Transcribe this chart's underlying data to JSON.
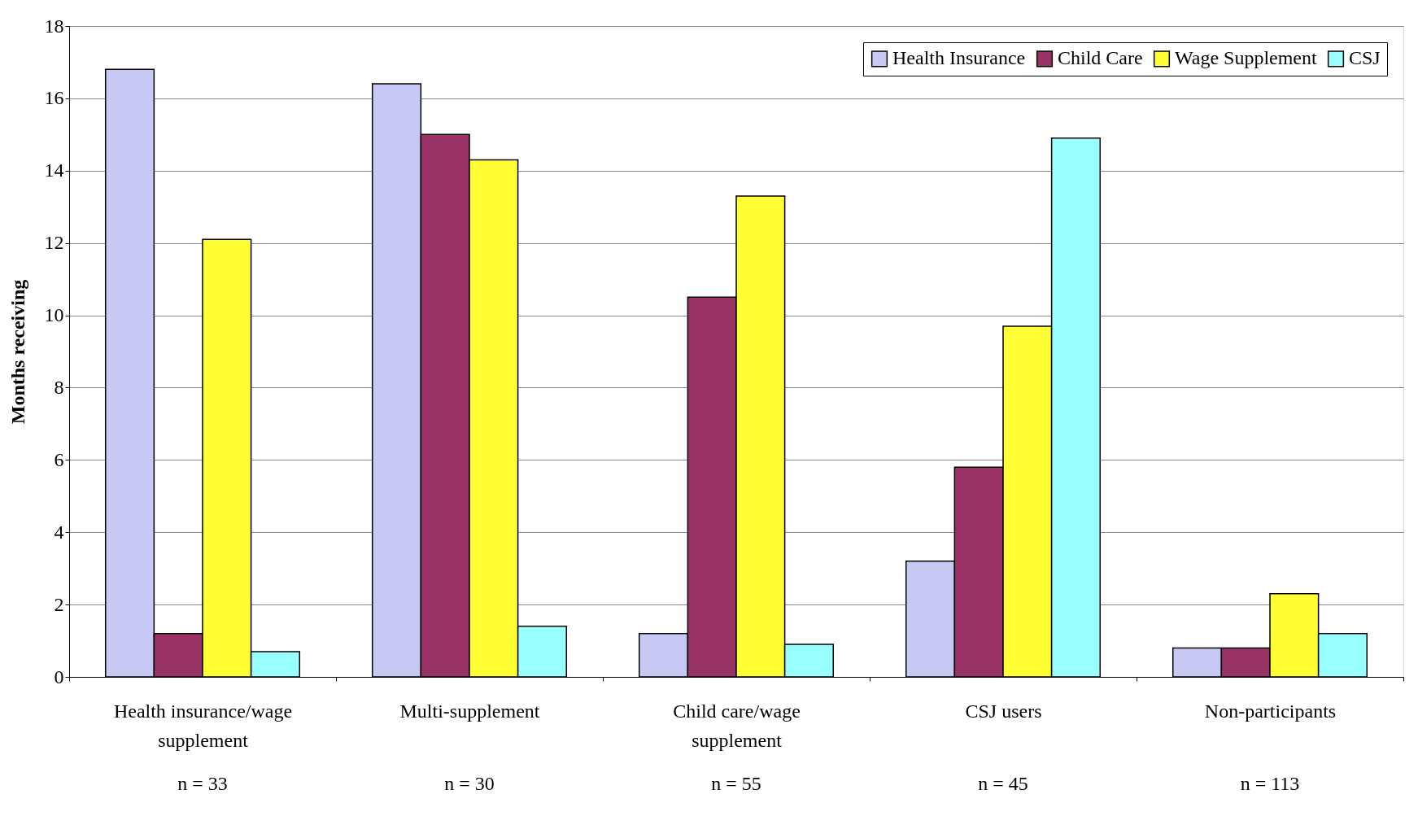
{
  "chart_data": {
    "type": "bar",
    "ylabel": "Months receiving",
    "categories": [
      "Health insurance/wage supplement",
      "Multi-supplement",
      "Child care/wage supplement",
      "CSJ users",
      "Non-participants"
    ],
    "series": [
      {
        "name": "Health Insurance",
        "color": "#c8c8f4",
        "values": [
          16.8,
          16.4,
          1.2,
          3.2,
          0.8
        ]
      },
      {
        "name": "Child Care",
        "color": "#993366",
        "values": [
          1.2,
          15.0,
          10.5,
          5.8,
          0.8
        ]
      },
      {
        "name": "Wage Supplement",
        "color": "#ffff33",
        "values": [
          12.1,
          14.3,
          13.3,
          9.7,
          2.3
        ]
      },
      {
        "name": "CSJ",
        "color": "#99ffff",
        "values": [
          0.7,
          1.4,
          0.9,
          14.9,
          1.2
        ]
      }
    ],
    "ylim": [
      0,
      18
    ],
    "yticks": [
      0,
      2,
      4,
      6,
      8,
      10,
      12,
      14,
      16,
      18
    ],
    "grid": "y",
    "legend": "top right",
    "annotations": [
      "n = 33",
      "n = 30",
      "n = 55",
      "n = 45",
      "n = 113"
    ]
  }
}
